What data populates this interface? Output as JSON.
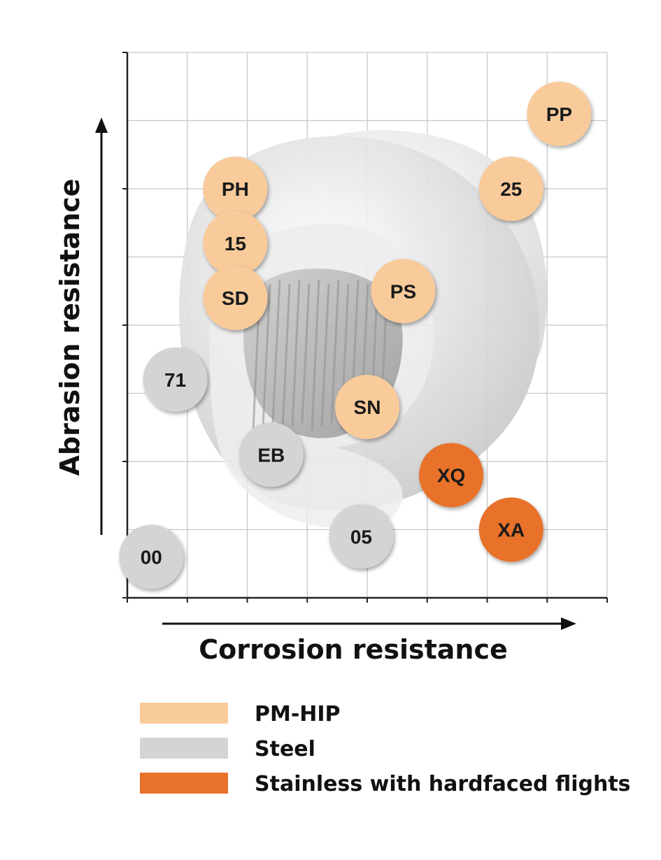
{
  "chart_data": {
    "type": "scatter",
    "xlabel": "Corrosion resistance",
    "ylabel": "Abrasion resistance",
    "xlim": [
      0,
      8
    ],
    "ylim": [
      0,
      8
    ],
    "grid": true,
    "background_image": "extruder screw element",
    "series": [
      {
        "name": "PM-HIP",
        "color": "#f9cb9b",
        "points": [
          {
            "label": "PP",
            "x": 7.2,
            "y": 7.1
          },
          {
            "label": "25",
            "x": 6.4,
            "y": 6.0
          },
          {
            "label": "PH",
            "x": 1.8,
            "y": 6.0
          },
          {
            "label": "15",
            "x": 1.8,
            "y": 5.2
          },
          {
            "label": "SD",
            "x": 1.8,
            "y": 4.4
          },
          {
            "label": "PS",
            "x": 4.6,
            "y": 4.5
          },
          {
            "label": "SN",
            "x": 4.0,
            "y": 2.8
          }
        ]
      },
      {
        "name": "Steel",
        "color": "#d4d4d4",
        "points": [
          {
            "label": "71",
            "x": 0.8,
            "y": 3.2
          },
          {
            "label": "EB",
            "x": 2.4,
            "y": 2.1
          },
          {
            "label": "05",
            "x": 3.9,
            "y": 0.9
          },
          {
            "label": "00",
            "x": 0.4,
            "y": 0.6
          }
        ]
      },
      {
        "name": "Stainless with hardfaced flights",
        "color": "#e8722c",
        "points": [
          {
            "label": "XQ",
            "x": 5.4,
            "y": 1.8
          },
          {
            "label": "XA",
            "x": 6.4,
            "y": 1.0
          }
        ]
      }
    ],
    "legend": {
      "placement": "bottom",
      "entries": [
        {
          "label": "PM-HIP",
          "color": "#f9cb9b"
        },
        {
          "label": "Steel",
          "color": "#d4d4d4"
        },
        {
          "label": "Stainless with hardfaced flights",
          "color": "#e8722c"
        }
      ]
    }
  }
}
